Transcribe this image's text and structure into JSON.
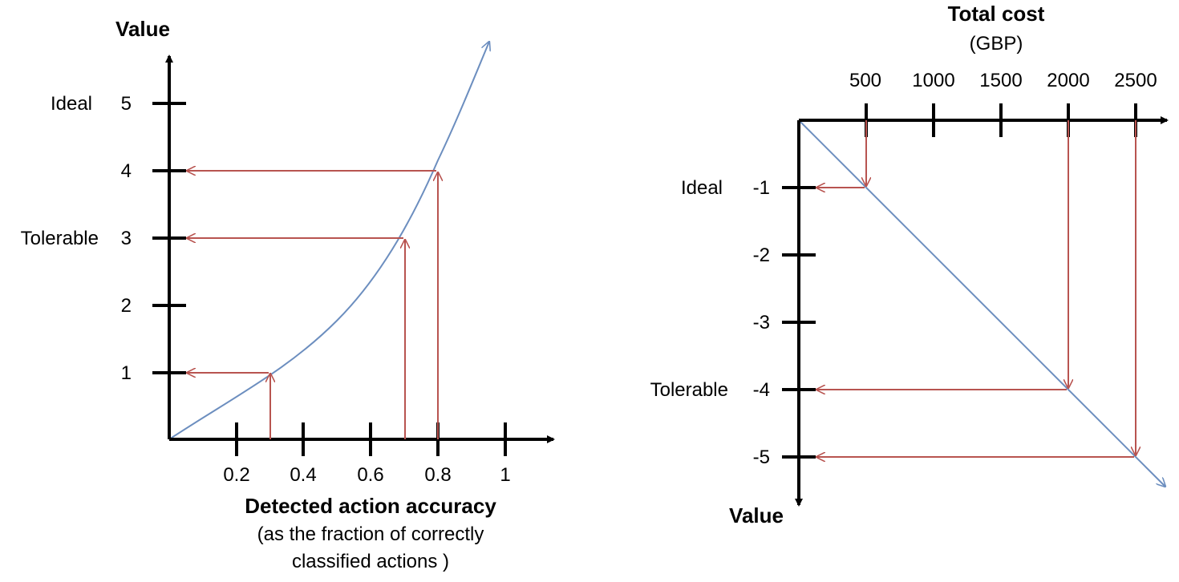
{
  "left_chart": {
    "y_axis_title": "Value",
    "x_axis_title": "Detected action accuracy",
    "x_axis_subtitle_lines": [
      "(as the fraction of correctly",
      "classified actions )"
    ],
    "y_ticks": [
      "1",
      "2",
      "3",
      "4",
      "5"
    ],
    "x_ticks": [
      "0.2",
      "0.4",
      "0.6",
      "0.8",
      "1"
    ],
    "level_labels": {
      "ideal": "Ideal",
      "tolerable": "Tolerable"
    }
  },
  "right_chart": {
    "x_axis_title": "Total cost",
    "x_axis_unit": "(GBP)",
    "y_axis_title": "Value",
    "x_ticks": [
      "500",
      "1000",
      "1500",
      "2000",
      "2500"
    ],
    "y_ticks": [
      "-1",
      "-2",
      "-3",
      "-4",
      "-5"
    ],
    "level_labels": {
      "ideal": "Ideal",
      "tolerable": "Tolerable"
    }
  },
  "colors": {
    "curve": "#6c8ebf",
    "arrow": "#b85450",
    "axis": "#000000"
  },
  "chart_data": [
    {
      "type": "line",
      "xlabel": "Detected action accuracy",
      "ylabel": "Value",
      "x_ticks": [
        0.2,
        0.4,
        0.6,
        0.8,
        1
      ],
      "y_ticks": [
        1,
        2,
        3,
        4,
        5
      ],
      "curve": {
        "x": [
          0,
          0.1,
          0.2,
          0.3,
          0.4,
          0.5,
          0.6,
          0.7,
          0.8,
          0.9,
          0.95
        ],
        "y": [
          0,
          0.33,
          0.66,
          1.0,
          1.4,
          1.9,
          2.4,
          3.0,
          3.9,
          5.5,
          6.0
        ]
      },
      "mappings": [
        {
          "x": 0.3,
          "y": 1
        },
        {
          "x": 0.7,
          "y": 3
        },
        {
          "x": 0.8,
          "y": 4
        }
      ],
      "annotations": [
        {
          "label": "Ideal",
          "y": 5
        },
        {
          "label": "Tolerable",
          "y": 3
        }
      ]
    },
    {
      "type": "line",
      "xlabel": "Total cost",
      "ylabel": "Value",
      "x_unit": "(GBP)",
      "x_ticks": [
        500,
        1000,
        1500,
        2000,
        2500
      ],
      "y_ticks": [
        -1,
        -2,
        -3,
        -4,
        -5
      ],
      "curve": {
        "x": [
          0,
          500,
          1000,
          1500,
          2000,
          2500,
          2700
        ],
        "y": [
          0,
          -1,
          -2,
          -3,
          -4,
          -5,
          -5.4
        ]
      },
      "mappings": [
        {
          "x": 500,
          "y": -1
        },
        {
          "x": 2000,
          "y": -4
        },
        {
          "x": 2500,
          "y": -5
        }
      ],
      "annotations": [
        {
          "label": "Ideal",
          "y": -1
        },
        {
          "label": "Tolerable",
          "y": -4
        }
      ]
    }
  ]
}
